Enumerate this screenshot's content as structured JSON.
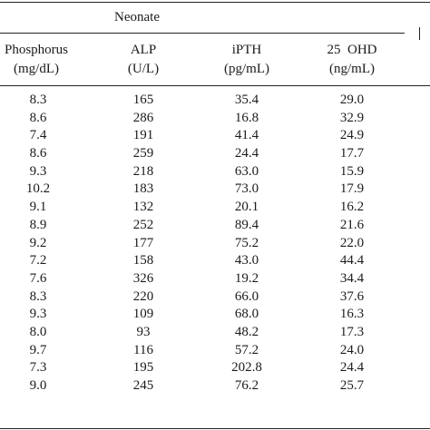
{
  "table": {
    "group_title": "Neonate",
    "columns": [
      {
        "name": "Phosphorus",
        "unit": "(mg/dL)"
      },
      {
        "name": "ALP",
        "unit": "(U/L)"
      },
      {
        "name": "iPTH",
        "unit": "(pg/mL)"
      },
      {
        "name": "25  OHD",
        "unit": "(ng/mL)"
      }
    ],
    "rows": [
      [
        "8.3",
        "165",
        "35.4",
        "29.0"
      ],
      [
        "8.6",
        "286",
        "16.8",
        "32.9"
      ],
      [
        "7.4",
        "191",
        "41.4",
        "24.9"
      ],
      [
        "8.6",
        "259",
        "24.4",
        "17.7"
      ],
      [
        "9.3",
        "218",
        "63.0",
        "15.9"
      ],
      [
        "10.2",
        "183",
        "73.0",
        "17.9"
      ],
      [
        "9.1",
        "132",
        "20.1",
        "16.2"
      ],
      [
        "8.9",
        "252",
        "89.4",
        "21.6"
      ],
      [
        "9.2",
        "177",
        "75.2",
        "22.0"
      ],
      [
        "7.2",
        "158",
        "43.0",
        "44.4"
      ],
      [
        "7.6",
        "326",
        "19.2",
        "34.4"
      ],
      [
        "8.3",
        "220",
        "66.0",
        "37.6"
      ],
      [
        "9.3",
        "109",
        "68.0",
        "16.3"
      ],
      [
        "8.0",
        "93",
        "48.2",
        "17.3"
      ],
      [
        "9.7",
        "116",
        "57.2",
        "24.0"
      ],
      [
        "7.3",
        "195",
        "202.8",
        "24.4"
      ],
      [
        "9.0",
        "245",
        "76.2",
        "25.7"
      ]
    ]
  }
}
